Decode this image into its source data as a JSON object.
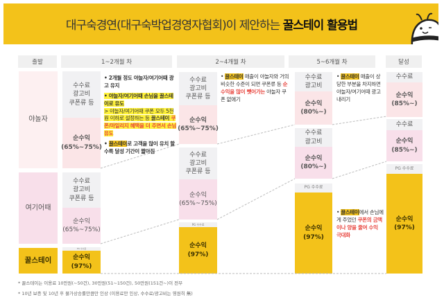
{
  "title": {
    "normal": "대구숙경연(대구숙박업경영자협회)이 제안하는 ",
    "bold": "꿀스테이 활용법"
  },
  "colors": {
    "accent": "#f3c21a",
    "fee": "#f1f1f3",
    "profit": "#fbe5e7",
    "highlight_red": "#e8463f"
  },
  "headers": [
    "출발",
    "1~2개월 차",
    "2~4개월 차",
    "5~6개월 차",
    "달성"
  ],
  "platforms": [
    "야놀자",
    "여기어때",
    "꿀스테이"
  ],
  "boxes": {
    "fee_full": "수수료\n광고비\n쿠폰류 등",
    "fee_ad": "수수료\n광고비",
    "fee": "수수료",
    "pg": "PG 수수료",
    "profit_65": "순수익\n(65%~75%)",
    "profit_80": "순수익\n(80%~)",
    "profit_85": "순수익\n(85%~)",
    "profit_97": "순수익\n(97%)"
  },
  "notes": {
    "m1": [
      [
        {
          "t": "• 2개월 정도 야놀자/여기어때 광고 유지",
          "s": "bold"
        }
      ],
      [
        {
          "t": "• 야놀자/여기어때 손님을 꿀스테이로 유도",
          "s": "bold hly"
        },
        {
          "t": "\n> 야놀자/여기어때 쿠폰 모두 5천원 이하로 설정하는 등 ",
          "s": "hly"
        },
        {
          "t": "꿀스테이",
          "s": "bold hly"
        },
        {
          "t": " 쿠폰/마일리지 혜택을 더 주면서 손님 유도",
          "s": "red hly"
        }
      ],
      [
        {
          "t": "• ",
          "s": "bold"
        },
        {
          "t": "꿀스테이",
          "s": "hl"
        },
        {
          "t": "로 고객을 많이 유치 할수록 달성 기간이 짧아짐",
          "s": "bold"
        }
      ]
    ],
    "m2": [
      [
        {
          "t": "• ",
          "s": ""
        },
        {
          "t": "꿀스테이",
          "s": "hl"
        },
        {
          "t": " 매출이 야놀자와 거의 비슷한 수준이 되면 쿠폰류 등 ",
          "s": ""
        },
        {
          "t": "순수익을 많이 뺏어가는",
          "s": "red"
        },
        {
          "t": " 야놀자 쿠폰 없애기",
          "s": ""
        }
      ]
    ],
    "m3": [
      [
        {
          "t": "• ",
          "s": ""
        },
        {
          "t": "꿀스테이",
          "s": "hl"
        },
        {
          "t": " 매출이 상당한 부분을 차지하면 야놀자/여기어때 광고 내리기",
          "s": ""
        }
      ]
    ],
    "m4": [
      [
        {
          "t": "• ",
          "s": ""
        },
        {
          "t": "꿀스테이",
          "s": "hl"
        },
        {
          "t": "에서 손님에게 주었던 ",
          "s": ""
        },
        {
          "t": "쿠폰의 금액이나 양을 줄여 수익 극대화",
          "s": "red"
        }
      ]
    ]
  },
  "footnotes": [
    "* 꿀스테이는 이용료 10만원(~50건), 30만원(51~150건), 50만원(151건~)이 전부",
    "* 10년 보증 및 10년 후 물가상승률만큼만 인상 (이용료만 인상, 수수료/광고비는 영원히 無)"
  ]
}
